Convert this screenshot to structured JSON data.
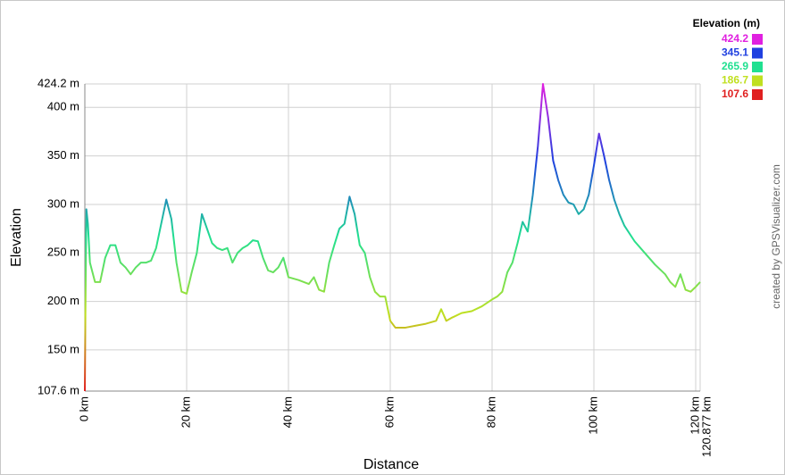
{
  "chart_data": {
    "type": "line",
    "x_label": "Distance",
    "y_label": "Elevation",
    "credit": "created by GPSVisualizer.com",
    "legend_title": "Elevation (m)",
    "color_scale": [
      {
        "value": 424.2,
        "color": "#e020e0"
      },
      {
        "value": 345.1,
        "color": "#2040e0"
      },
      {
        "value": 265.9,
        "color": "#20e090"
      },
      {
        "value": 186.7,
        "color": "#c0e020"
      },
      {
        "value": 107.6,
        "color": "#e02020"
      }
    ],
    "xlim": [
      0,
      120.877
    ],
    "ylim": [
      107.6,
      424.2
    ],
    "xticks": [
      {
        "value": 0,
        "label": "0 km"
      },
      {
        "value": 20,
        "label": "20 km"
      },
      {
        "value": 40,
        "label": "40 km"
      },
      {
        "value": 60,
        "label": "60 km"
      },
      {
        "value": 80,
        "label": "80 km"
      },
      {
        "value": 100,
        "label": "100 km"
      },
      {
        "value": 120,
        "label": "120 km"
      },
      {
        "value": 120.877,
        "label": "120.877 km"
      }
    ],
    "yticks": [
      {
        "value": 107.6,
        "label": "107.6 m"
      },
      {
        "value": 150,
        "label": "150 m"
      },
      {
        "value": 200,
        "label": "200 m"
      },
      {
        "value": 250,
        "label": "250 m"
      },
      {
        "value": 300,
        "label": "300 m"
      },
      {
        "value": 350,
        "label": "350 m"
      },
      {
        "value": 400,
        "label": "400 m"
      },
      {
        "value": 424.2,
        "label": "424.2 m"
      }
    ],
    "grid": true,
    "x": [
      0,
      0.1,
      0.3,
      0.6,
      1,
      2,
      3,
      4,
      5,
      6,
      7,
      8,
      9,
      10,
      11,
      12,
      13,
      14,
      15,
      16,
      17,
      18,
      19,
      20,
      21,
      22,
      23,
      24,
      25,
      26,
      27,
      28,
      29,
      30,
      31,
      32,
      33,
      34,
      35,
      36,
      37,
      38,
      39,
      40,
      42,
      44,
      45,
      46,
      47,
      48,
      49,
      50,
      51,
      52,
      53,
      54,
      55,
      56,
      57,
      58,
      59,
      60,
      61,
      63,
      65,
      67,
      69,
      70,
      71,
      72,
      74,
      76,
      78,
      80,
      81,
      82,
      83,
      84,
      85,
      86,
      87,
      88,
      89,
      90,
      91,
      92,
      93,
      94,
      95,
      96,
      97,
      98,
      99,
      100,
      101,
      102,
      103,
      104,
      105,
      106,
      108,
      110,
      112,
      114,
      115,
      116,
      117,
      118,
      119,
      120,
      120.877
    ],
    "values": [
      107.6,
      180,
      295,
      280,
      240,
      220,
      220,
      245,
      258,
      258,
      240,
      235,
      228,
      235,
      240,
      240,
      242,
      255,
      280,
      305,
      285,
      240,
      210,
      208,
      230,
      250,
      290,
      275,
      260,
      255,
      253,
      255,
      240,
      250,
      255,
      258,
      263,
      262,
      245,
      232,
      230,
      235,
      245,
      225,
      222,
      218,
      225,
      212,
      210,
      240,
      258,
      275,
      280,
      308,
      290,
      258,
      250,
      225,
      210,
      205,
      205,
      180,
      173,
      173,
      175,
      177,
      180,
      192,
      180,
      183,
      188,
      190,
      195,
      202,
      205,
      210,
      230,
      240,
      260,
      282,
      272,
      310,
      360,
      424.2,
      390,
      345,
      325,
      310,
      302,
      300,
      290,
      295,
      310,
      340,
      373,
      350,
      325,
      305,
      290,
      278,
      262,
      250,
      238,
      228,
      220,
      215,
      228,
      212,
      210,
      215,
      220
    ]
  }
}
